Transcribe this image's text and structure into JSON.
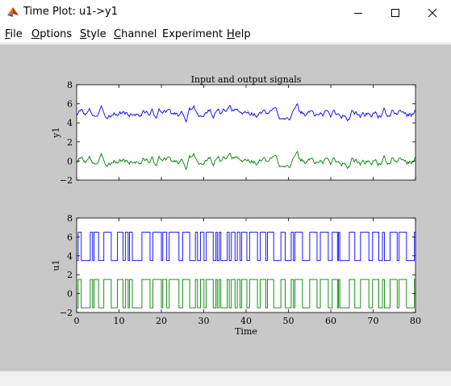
{
  "window": {
    "title": "Time Plot: u1->y1",
    "icon": "matlab-icon",
    "controls": [
      "minimize-icon",
      "maximize-icon",
      "close-icon"
    ]
  },
  "menu": [
    {
      "label": "File",
      "mnemonic": "F"
    },
    {
      "label": "Options",
      "mnemonic": "O"
    },
    {
      "label": "Style",
      "mnemonic": "S"
    },
    {
      "label": "Channel",
      "mnemonic": "C"
    },
    {
      "label": "Experiment",
      "mnemonic": ""
    },
    {
      "label": "Help",
      "mnemonic": "H"
    }
  ],
  "colors": {
    "figure_bg": "#c8c8c8",
    "axes_bg": "#ffffff",
    "series_blue": "#0000ff",
    "series_green": "#008000"
  },
  "chart_data": [
    {
      "type": "line",
      "title": "Input and output signals",
      "xlabel": "",
      "ylabel": "y1",
      "xlim": [
        0,
        80
      ],
      "ylim": [
        -2,
        8
      ],
      "xticks": [
        0,
        10,
        20,
        30,
        40,
        50,
        60,
        70,
        80
      ],
      "show_xticklabels": false,
      "yticks": [
        -2,
        0,
        2,
        4,
        6,
        8
      ],
      "grid": false,
      "series": [
        {
          "color": "#0000ff",
          "kind": "smooth",
          "offset": 5.0,
          "amplitude": 1.0,
          "seed": 3
        },
        {
          "color": "#008000",
          "kind": "smooth",
          "offset": 0.0,
          "amplitude": 1.0,
          "seed": 3
        }
      ]
    },
    {
      "type": "line",
      "title": "",
      "xlabel": "Time",
      "ylabel": "u1",
      "xlim": [
        0,
        80
      ],
      "ylim": [
        -2,
        8
      ],
      "xticks": [
        0,
        10,
        20,
        30,
        40,
        50,
        60,
        70,
        80
      ],
      "show_xticklabels": true,
      "yticks": [
        -2,
        0,
        2,
        4,
        6,
        8
      ],
      "grid": false,
      "series": [
        {
          "color": "#0000ff",
          "kind": "binary",
          "levels": [
            3.5,
            6.5
          ],
          "seed": 11
        },
        {
          "color": "#008000",
          "kind": "binary",
          "levels": [
            -1.5,
            1.5
          ],
          "seed": 11
        }
      ]
    }
  ]
}
